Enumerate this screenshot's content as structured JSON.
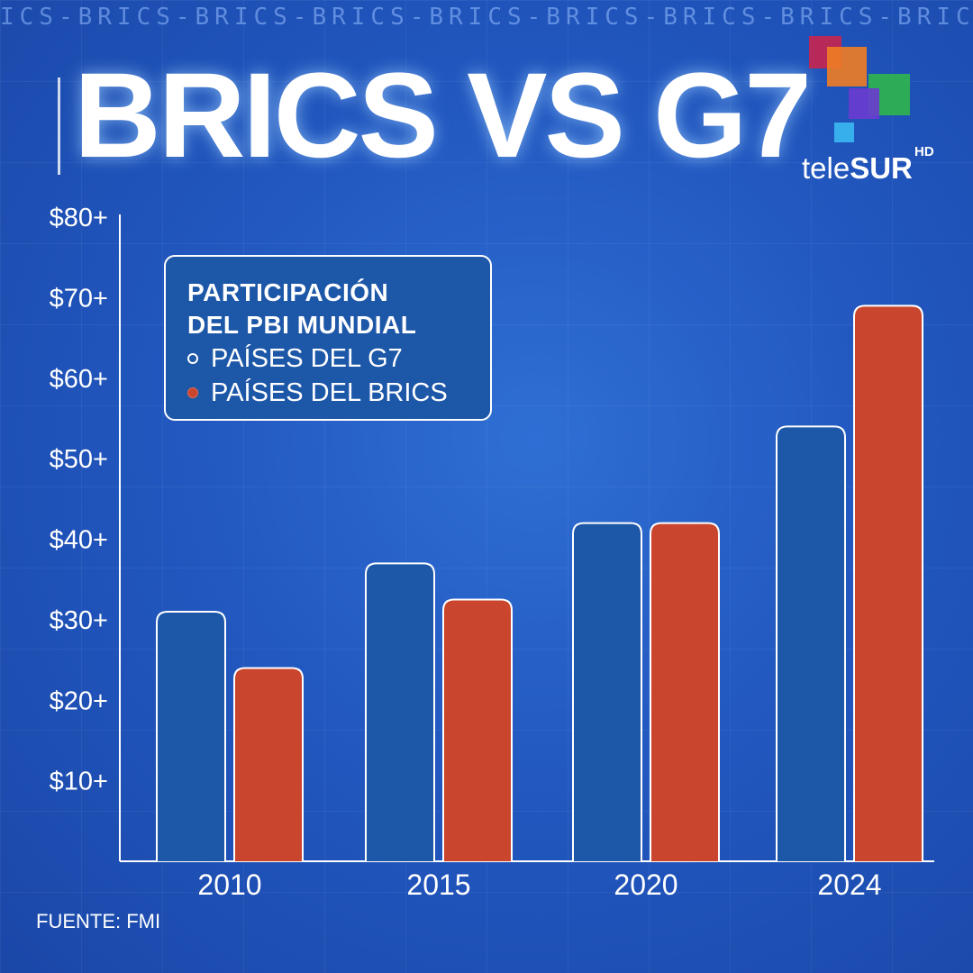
{
  "ticker": "ICS-BRICS-BRICS-BRICS-BRICS-BRICS-BRICS-BRICS-BRICS",
  "title": "BRICS VS G7",
  "logo": {
    "text_light": "tele",
    "text_bold": "SUR",
    "superscript": "HD"
  },
  "legend": {
    "title_line1": "PARTICIPACIÓN",
    "title_line2": "DEL PBI MUNDIAL",
    "g7_label": "PAÍSES DEL G7",
    "brics_label": "PAÍSES DEL BRICS"
  },
  "source": "FUENTE: FMI",
  "colors": {
    "g7": "#1d57a8",
    "brics": "#c9452e",
    "axis": "#ffffff"
  },
  "chart_data": {
    "type": "bar",
    "categories": [
      "2010",
      "2015",
      "2020",
      "2024"
    ],
    "series": [
      {
        "name": "PAÍSES DEL G7",
        "values": [
          31,
          37,
          42,
          54
        ]
      },
      {
        "name": "PAÍSES DEL BRICS",
        "values": [
          24,
          32.5,
          42,
          69
        ]
      }
    ],
    "y_ticks": [
      10,
      20,
      30,
      40,
      50,
      60,
      70,
      80
    ],
    "y_tick_labels": [
      "$10+",
      "$20+",
      "$30+",
      "$40+",
      "$50+",
      "$60+",
      "$70+",
      "$80+"
    ],
    "ylim": [
      0,
      80
    ],
    "grid": false,
    "legend_position": "top-left"
  }
}
